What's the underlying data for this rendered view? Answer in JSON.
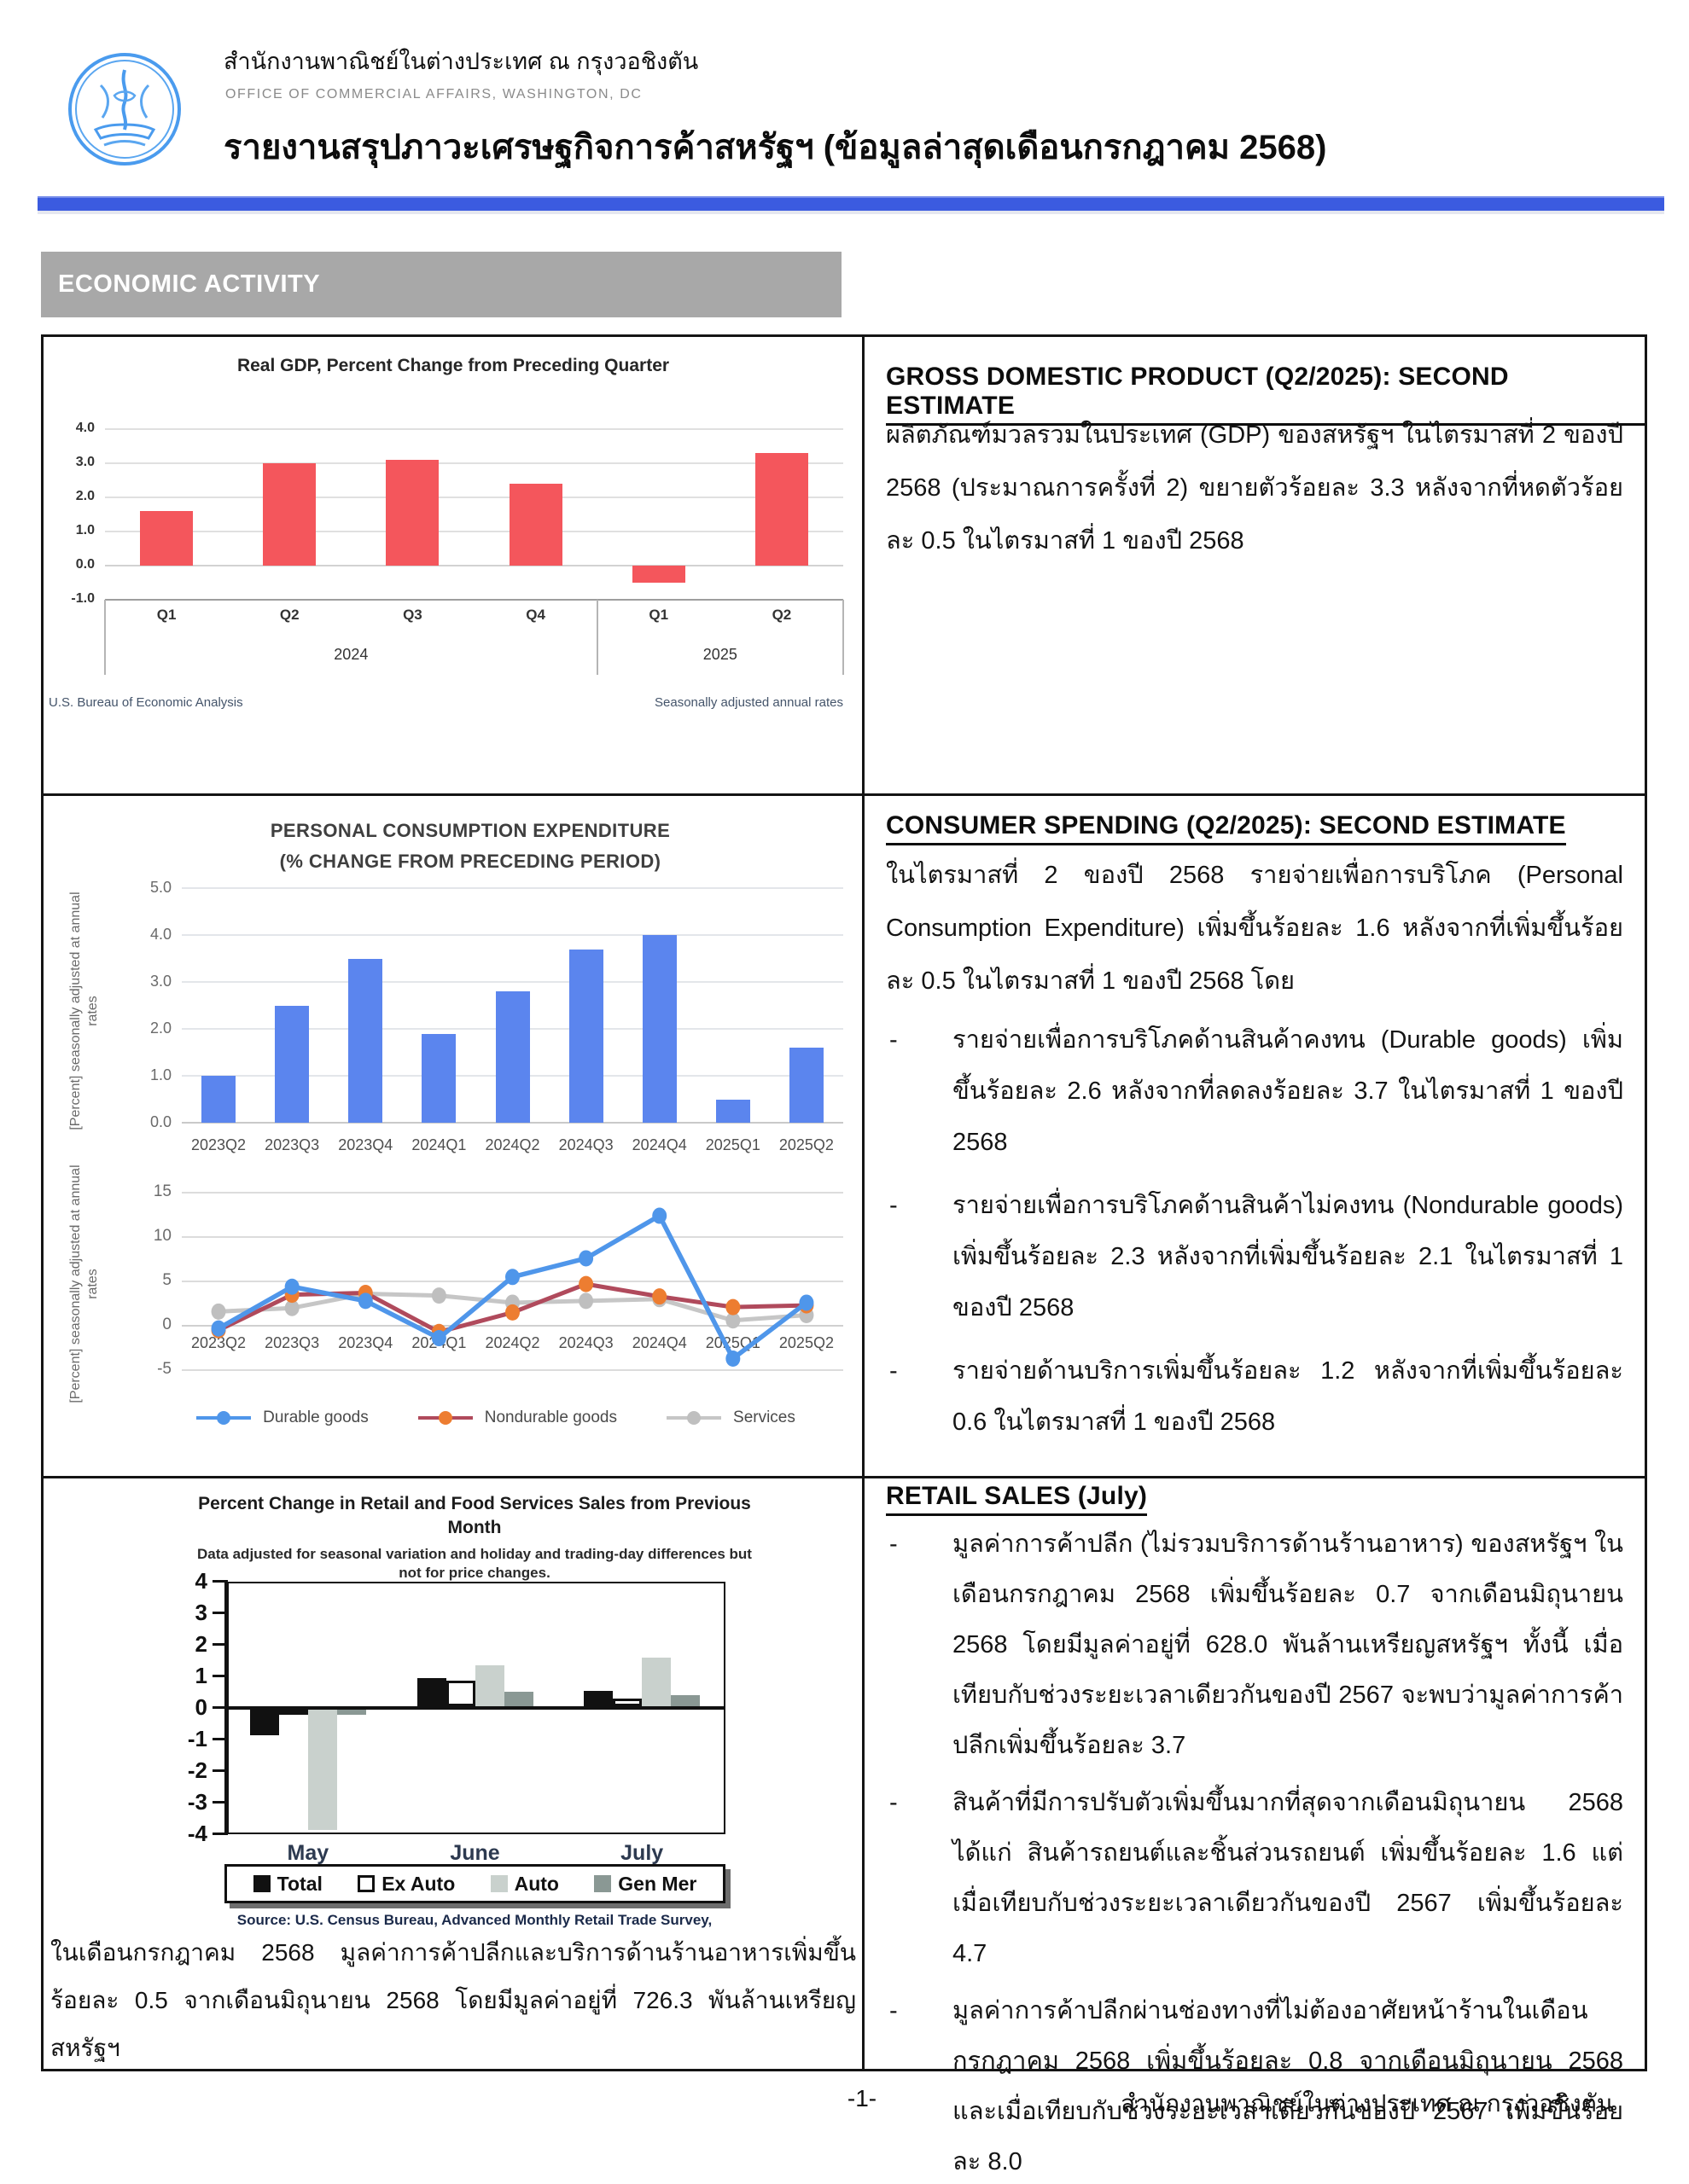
{
  "page": {
    "org_th": "สำนักงานพาณิชย์ในต่างประเทศ ณ กรุงวอชิงตัน",
    "org_en": "OFFICE OF COMMERCIAL AFFAIRS, WASHINGTON, DC",
    "title": "รายงานสรุปภาวะเศรษฐกิจการค้าสหรัฐฯ (ข้อมูลล่าสุดเดือนกรกฎาคม 2568)",
    "section_banner": "ECONOMIC ACTIVITY",
    "footer_page": "-1-",
    "footer_org": "สำนักงานพาณิชย์ในต่างประเทศ ณ กรุงวอชิงตัน"
  },
  "colors": {
    "accent_bar": "#3b5be0",
    "banner_bg": "#a8a8a8",
    "gdp_bar": "#f4565c",
    "pce_bar": "#5b85ee",
    "durable": "#4f96ea",
    "nondurable_line": "#b04a5c",
    "nondurable_marker": "#ed7d31",
    "services": "#c6c6c6"
  },
  "gdp": {
    "heading": "GROSS DOMESTIC PRODUCT (Q2/2025): SECOND ESTIMATE",
    "body": "ผลิตภัณฑ์มวลรวมในประเทศ (GDP) ของสหรัฐฯ ในไตรมาสที่ 2 ของปี 2568 (ประมาณการครั้งที่ 2) ขยายตัวร้อยละ 3.3 หลังจากที่หดตัวร้อยละ 0.5 ในไตรมาสที่ 1 ของปี 2568"
  },
  "consumer": {
    "heading": "CONSUMER SPENDING (Q2/2025): SECOND ESTIMATE",
    "intro": "ในไตรมาสที่ 2 ของปี 2568 รายจ่ายเพื่อการบริโภค (Personal Consumption Expenditure) เพิ่มขึ้นร้อยละ 1.6 หลังจากที่เพิ่มขึ้นร้อยละ 0.5 ในไตรมาสที่ 1 ของปี 2568 โดย",
    "bullets": [
      "รายจ่ายเพื่อการบริโภคด้านสินค้าคงทน (Durable goods) เพิ่มขึ้นร้อยละ 2.6 หลังจากที่ลดลงร้อยละ 3.7 ในไตรมาสที่ 1 ของปี 2568",
      "รายจ่ายเพื่อการบริโภคด้านสินค้าไม่คงทน (Nondurable goods) เพิ่มขึ้นร้อยละ 2.3 หลังจากที่เพิ่มขึ้นร้อยละ 2.1 ในไตรมาสที่ 1 ของปี 2568",
      "รายจ่ายด้านบริการเพิ่มขึ้นร้อยละ 1.2 หลังจากที่เพิ่มขึ้นร้อยละ 0.6 ในไตรมาสที่ 1 ของปี 2568"
    ]
  },
  "retail": {
    "heading": "RETAIL SALES (July)",
    "bullets": [
      "มูลค่าการค้าปลีก (ไม่รวมบริการด้านร้านอาหาร) ของสหรัฐฯ ในเดือนกรกฎาคม 2568 เพิ่มขึ้นร้อยละ 0.7 จากเดือนมิถุนายน 2568 โดยมีมูลค่าอยู่ที่ 628.0 พันล้านเหรียญสหรัฐฯ ทั้งนี้ เมื่อเทียบกับช่วงระยะเวลาเดียวกันของปี 2567 จะพบว่ามูลค่าการค้าปลีกเพิ่มขึ้นร้อยละ 3.7",
      "สินค้าที่มีการปรับตัวเพิ่มขึ้นมากที่สุดจากเดือนมิถุนายน 2568 ได้แก่ สินค้ารถยนต์และชิ้นส่วนรถยนต์ เพิ่มขึ้นร้อยละ 1.6 แต่เมื่อเทียบกับช่วงระยะเวลาเดียวกันของปี 2567 เพิ่มขึ้นร้อยละ 4.7",
      "มูลค่าการค้าปลีกผ่านช่องทางที่ไม่ต้องอาศัยหน้าร้านในเดือนกรกฎาคม 2568 เพิ่มขึ้นร้อยละ 0.8 จากเดือนมิถุนายน 2568 และเมื่อเทียบกับช่วงระยะเวลาเดียวกันของปี 2567 เพิ่มขึ้นร้อยละ 8.0"
    ],
    "left_note": "ในเดือนกรกฎาคม 2568 มูลค่าการค้าปลีกและบริการด้านร้านอาหารเพิ่มขึ้นร้อยละ 0.5 จากเดือนมิถุนายน 2568 โดยมีมูลค่าอยู่ที่ 726.3 พันล้านเหรียญสหรัฐฯ"
  },
  "chart_data": [
    {
      "type": "bar",
      "title": "Real GDP, Percent Change from Preceding Quarter",
      "categories": [
        "Q1",
        "Q2",
        "Q3",
        "Q4",
        "Q1",
        "Q2"
      ],
      "year_groups": [
        {
          "label": "2024",
          "span": 4
        },
        {
          "label": "2025",
          "span": 2
        }
      ],
      "values": [
        1.6,
        3.0,
        3.1,
        2.4,
        -0.5,
        3.3
      ],
      "bar_color": "#f4565c",
      "ylim": [
        -1.0,
        4.0
      ],
      "yticks": [
        "4.0",
        "3.0",
        "2.0",
        "1.0",
        "0.0",
        "-1.0"
      ],
      "grid": true,
      "footnote_left": "U.S. Bureau of Economic Analysis",
      "footnote_right": "Seasonally adjusted annual rates"
    },
    {
      "type": "bar",
      "title_line1": "PERSONAL CONSUMPTION EXPENDITURE",
      "title_line2": "(% CHANGE FROM PRECEDING PERIOD)",
      "ylabel": "[Percent] seasonally adjusted at annual rates",
      "categories": [
        "2023Q2",
        "2023Q3",
        "2023Q4",
        "2024Q1",
        "2024Q2",
        "2024Q3",
        "2024Q4",
        "2025Q1",
        "2025Q2"
      ],
      "values": [
        1.0,
        2.5,
        3.5,
        1.9,
        2.8,
        3.7,
        4.0,
        0.5,
        1.6
      ],
      "bar_color": "#5b85ee",
      "ylim": [
        0.0,
        5.0
      ],
      "yticks": [
        "5.0",
        "4.0",
        "3.0",
        "2.0",
        "1.0",
        "0.0"
      ],
      "grid": true
    },
    {
      "type": "line",
      "ylabel": "[Percent] seasonally adjusted at annual rates",
      "categories": [
        "2023Q2",
        "2023Q3",
        "2023Q4",
        "2024Q1",
        "2024Q2",
        "2024Q3",
        "2024Q4",
        "2025Q1",
        "2025Q2"
      ],
      "ylim": [
        -5,
        15
      ],
      "yticks": [
        "15",
        "10",
        "5",
        "0",
        "-5"
      ],
      "grid": true,
      "legend_position": "bottom",
      "series": [
        {
          "name": "Durable goods",
          "line_color": "#4f96ea",
          "marker_color": "#4f96ea",
          "values": [
            -0.3,
            4.4,
            2.8,
            -1.4,
            5.5,
            7.6,
            12.4,
            -3.7,
            2.6
          ]
        },
        {
          "name": "Nondurable goods",
          "line_color": "#b04a5c",
          "marker_color": "#ed7d31",
          "values": [
            -0.5,
            3.5,
            3.7,
            -0.7,
            1.5,
            4.7,
            3.3,
            2.1,
            2.3
          ]
        },
        {
          "name": "Services",
          "line_color": "#c6c6c6",
          "marker_color": "#bfbfbf",
          "values": [
            1.6,
            2.0,
            3.6,
            3.4,
            2.6,
            2.8,
            3.0,
            0.6,
            1.2
          ]
        }
      ]
    },
    {
      "type": "bar",
      "title": "Percent Change in Retail and Food Services Sales from Previous Month",
      "subtitle": "Data adjusted for seasonal variation and holiday and trading-day differences but not for price changes.",
      "categories": [
        "May",
        "June",
        "July"
      ],
      "ylim": [
        -4,
        4
      ],
      "yticks": [
        "4",
        "3",
        "2",
        "1",
        "0",
        "-1",
        "-2",
        "-3",
        "-4"
      ],
      "grid": false,
      "legend_position": "bottom",
      "series": [
        {
          "name": "Total",
          "color": "#111111",
          "values": [
            -0.8,
            0.9,
            0.5
          ]
        },
        {
          "name": "Ex Auto",
          "color": "#ffffff",
          "values": [
            -0.1,
            0.8,
            0.25
          ]
        },
        {
          "name": "Auto",
          "color": "#c9d1cd",
          "values": [
            -3.8,
            1.3,
            1.55
          ]
        },
        {
          "name": "Gen Mer",
          "color": "#8a9894",
          "values": [
            -0.15,
            0.45,
            0.35
          ]
        }
      ],
      "source": "Source: U.S. Census Bureau, Advanced Monthly Retail Trade Survey,"
    }
  ]
}
